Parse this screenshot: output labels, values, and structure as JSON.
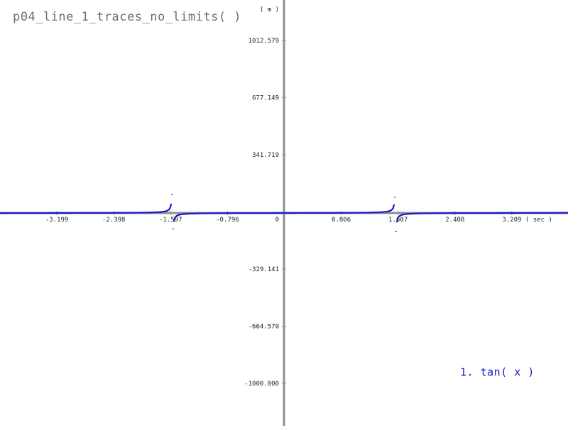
{
  "chart_data": {
    "type": "line",
    "title": "p04_line_1_traces_no_limits( )",
    "xlabel": "( sec )",
    "ylabel": "( m )",
    "x_ticks": [
      {
        "value": -3.199,
        "label": "-3.199"
      },
      {
        "value": -2.398,
        "label": "-2.398"
      },
      {
        "value": -1.597,
        "label": "-1.597"
      },
      {
        "value": -0.796,
        "label": "-0.796"
      },
      {
        "value": 0,
        "label": "0"
      },
      {
        "value": 0.806,
        "label": "0.806"
      },
      {
        "value": 1.607,
        "label": "1.607"
      },
      {
        "value": 2.408,
        "label": "2.408"
      },
      {
        "value": 3.209,
        "label": "3.209"
      }
    ],
    "y_ticks": [
      {
        "value": 1012.579,
        "label": "1012.579"
      },
      {
        "value": 677.149,
        "label": "677.149"
      },
      {
        "value": 341.719,
        "label": "341.719"
      },
      {
        "value": -329.141,
        "label": "-329.141"
      },
      {
        "value": -664.57,
        "label": "-664.570"
      },
      {
        "value": -1000.0,
        "label": "-1000.000"
      }
    ],
    "xlim": [
      -4.0,
      4.0
    ],
    "ylim": [
      -1250,
      1250
    ],
    "grid": false,
    "legend_position": "bottom-right",
    "series": [
      {
        "name": "1. tan( x )",
        "function": "tan",
        "color": "#1a1ac8",
        "x_range": [
          -4.0,
          4.0
        ],
        "samples": 801
      }
    ]
  }
}
